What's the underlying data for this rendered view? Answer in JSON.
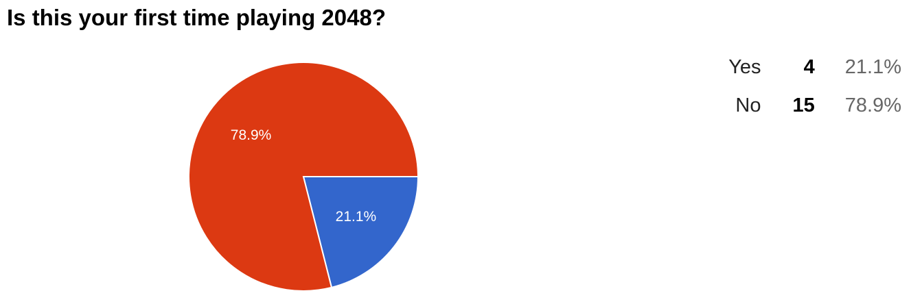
{
  "chart_data": {
    "type": "pie",
    "title": "Is this your first time playing 2048?",
    "slices": [
      {
        "label": "Yes",
        "count": 4,
        "percent": 21.1,
        "percent_label": "21.1%",
        "count_label": "4",
        "color": "#3366CC"
      },
      {
        "label": "No",
        "count": 15,
        "percent": 78.9,
        "percent_label": "78.9%",
        "count_label": "15",
        "color": "#DC3912"
      }
    ]
  }
}
